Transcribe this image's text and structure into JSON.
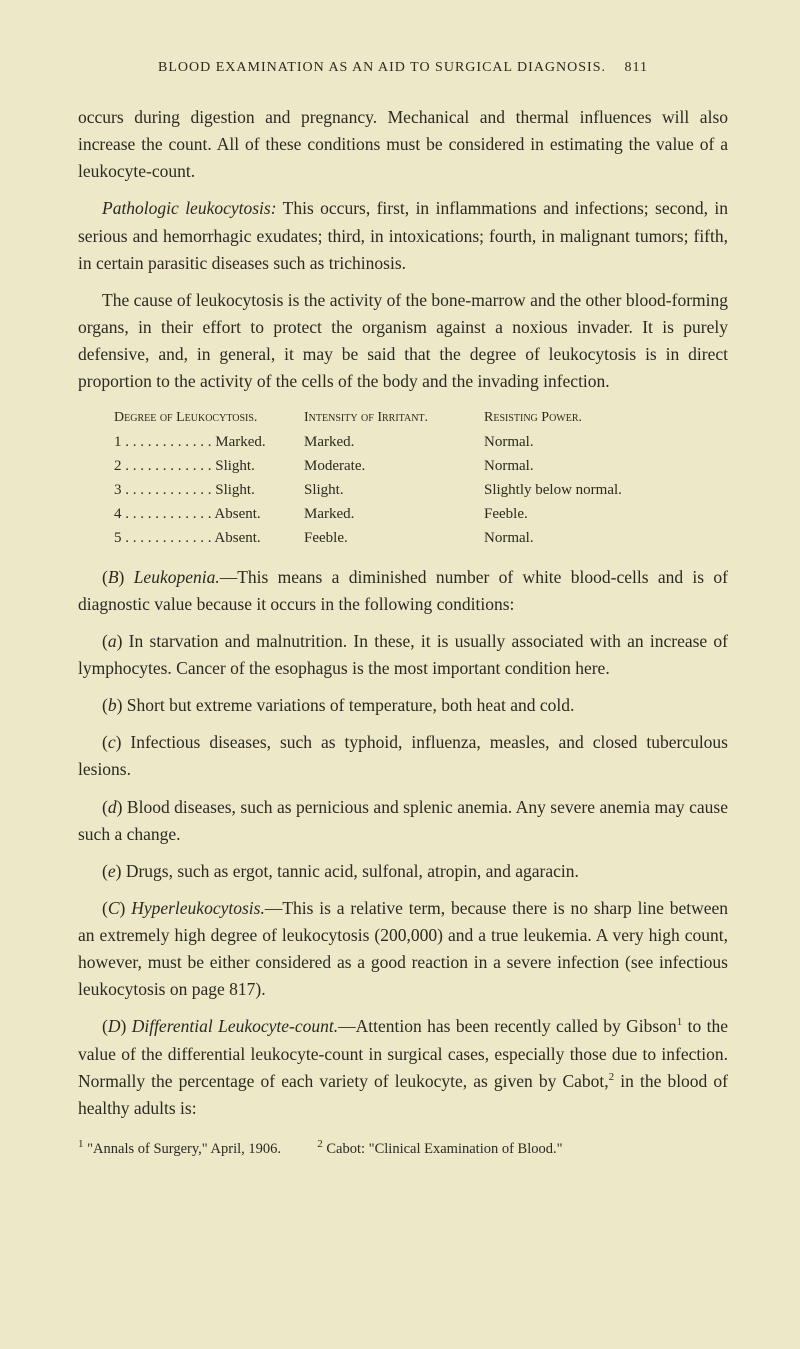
{
  "header": {
    "title": "BLOOD EXAMINATION AS AN AID TO SURGICAL DIAGNOSIS.",
    "page": "811"
  },
  "para1": "occurs during digestion and pregnancy. Mechanical and thermal in­fluences will also increase the count. All of these conditions must be con­sidered in estimating the value of a leukocyte-count.",
  "para2_lead": "Pathologic leukocytosis:",
  "para2_rest": " This occurs, first, in inflammations and infections; second, in serious and hemorrhagic exudates; third, in intoxi­cations; fourth, in malignant tumors; fifth, in certain parasitic diseases such as trichinosis.",
  "para3": "The cause of leukocytosis is the activity of the bone-marrow and the other blood-forming organs, in their effort to protect the organism against a noxious invader. It is purely defensive, and, in general, it may be said that the degree of leukocytosis is in direct proportion to the activity of the cells of the body and the invading infection.",
  "table": {
    "headers": [
      "Degree of Leukocytosis.",
      "Intensity of Irritant.",
      "Resisting Power."
    ],
    "rows": [
      [
        "1 . . . . . . . . . . . . Marked.",
        "Marked.",
        "Normal."
      ],
      [
        "2 . . . . . . . . . . . . Slight.",
        "Moderate.",
        "Normal."
      ],
      [
        "3 . . . . . . . . . . . . Slight.",
        "Slight.",
        "Slightly below normal."
      ],
      [
        "4 . . . . . . . . . . . . Absent.",
        "Marked.",
        "Feeble."
      ],
      [
        "5 . . . . . . . . . . . . Absent.",
        "Feeble.",
        "Normal."
      ]
    ]
  },
  "paraB_lead_paren": "(",
  "paraB_lead_letter": "B",
  "paraB_lead_close": ") ",
  "paraB_lead_italic": "Leukopenia.",
  "paraB_rest": "—This means a diminished number of white blood-cells and is of diagnostic value because it occurs in the following condi­tions:",
  "item_a_lead": "(",
  "item_a_letter": "a",
  "item_a_close": ") ",
  "item_a_text": "In starvation and malnutrition. In these, it is usually associated with an increase of lymphocytes. Cancer of the esophagus is the most important condition here.",
  "item_b_lead": "(",
  "item_b_letter": "b",
  "item_b_close": ") ",
  "item_b_text": "Short but extreme variations of temperature, both heat and cold.",
  "item_c_lead": "(",
  "item_c_letter": "c",
  "item_c_close": ") ",
  "item_c_text": "Infectious diseases, such as typhoid, influenza, measles, and closed tuberculous lesions.",
  "item_d_lead": "(",
  "item_d_letter": "d",
  "item_d_close": ") ",
  "item_d_text": "Blood diseases, such as pernicious and splenic anemia. Any severe anemia may cause such a change.",
  "item_e_lead": "(",
  "item_e_letter": "e",
  "item_e_close": ") ",
  "item_e_text": "Drugs, such as ergot, tannic acid, sulfonal, atropin, and agaracin.",
  "paraC_lead_paren": "(",
  "paraC_lead_letter": "C",
  "paraC_lead_close": ") ",
  "paraC_lead_italic": "Hyperleukocytosis.",
  "paraC_rest": "—This is a relative term, because there is no sharp line between an extremely high degree of leukocytosis (200,000) and a true leukemia. A very high count, however, must be either con­sidered as a good reaction in a severe infection (see infectious leukocytosis on page 817).",
  "paraD_lead_paren": "(",
  "paraD_lead_letter": "D",
  "paraD_lead_close": ") ",
  "paraD_lead_italic": "Differential Leukocyte-count.",
  "paraD_rest1": "—Attention has been recently called by Gibson",
  "paraD_sup1": "1",
  "paraD_rest2": " to the value of the differential leukocyte-count in surgical cases, especially those due to infection. Normally the percentage of each variety of leukocyte, as given by Cabot,",
  "paraD_sup2": "2",
  "paraD_rest3": " in the blood of healthy adults is:",
  "footnote1_sup": "1",
  "footnote1_text": " \"Annals of Surgery,\" April, 1906.",
  "footnote2_sup": "2",
  "footnote2_text": " Cabot: \"Clinical Examination of Blood.\""
}
